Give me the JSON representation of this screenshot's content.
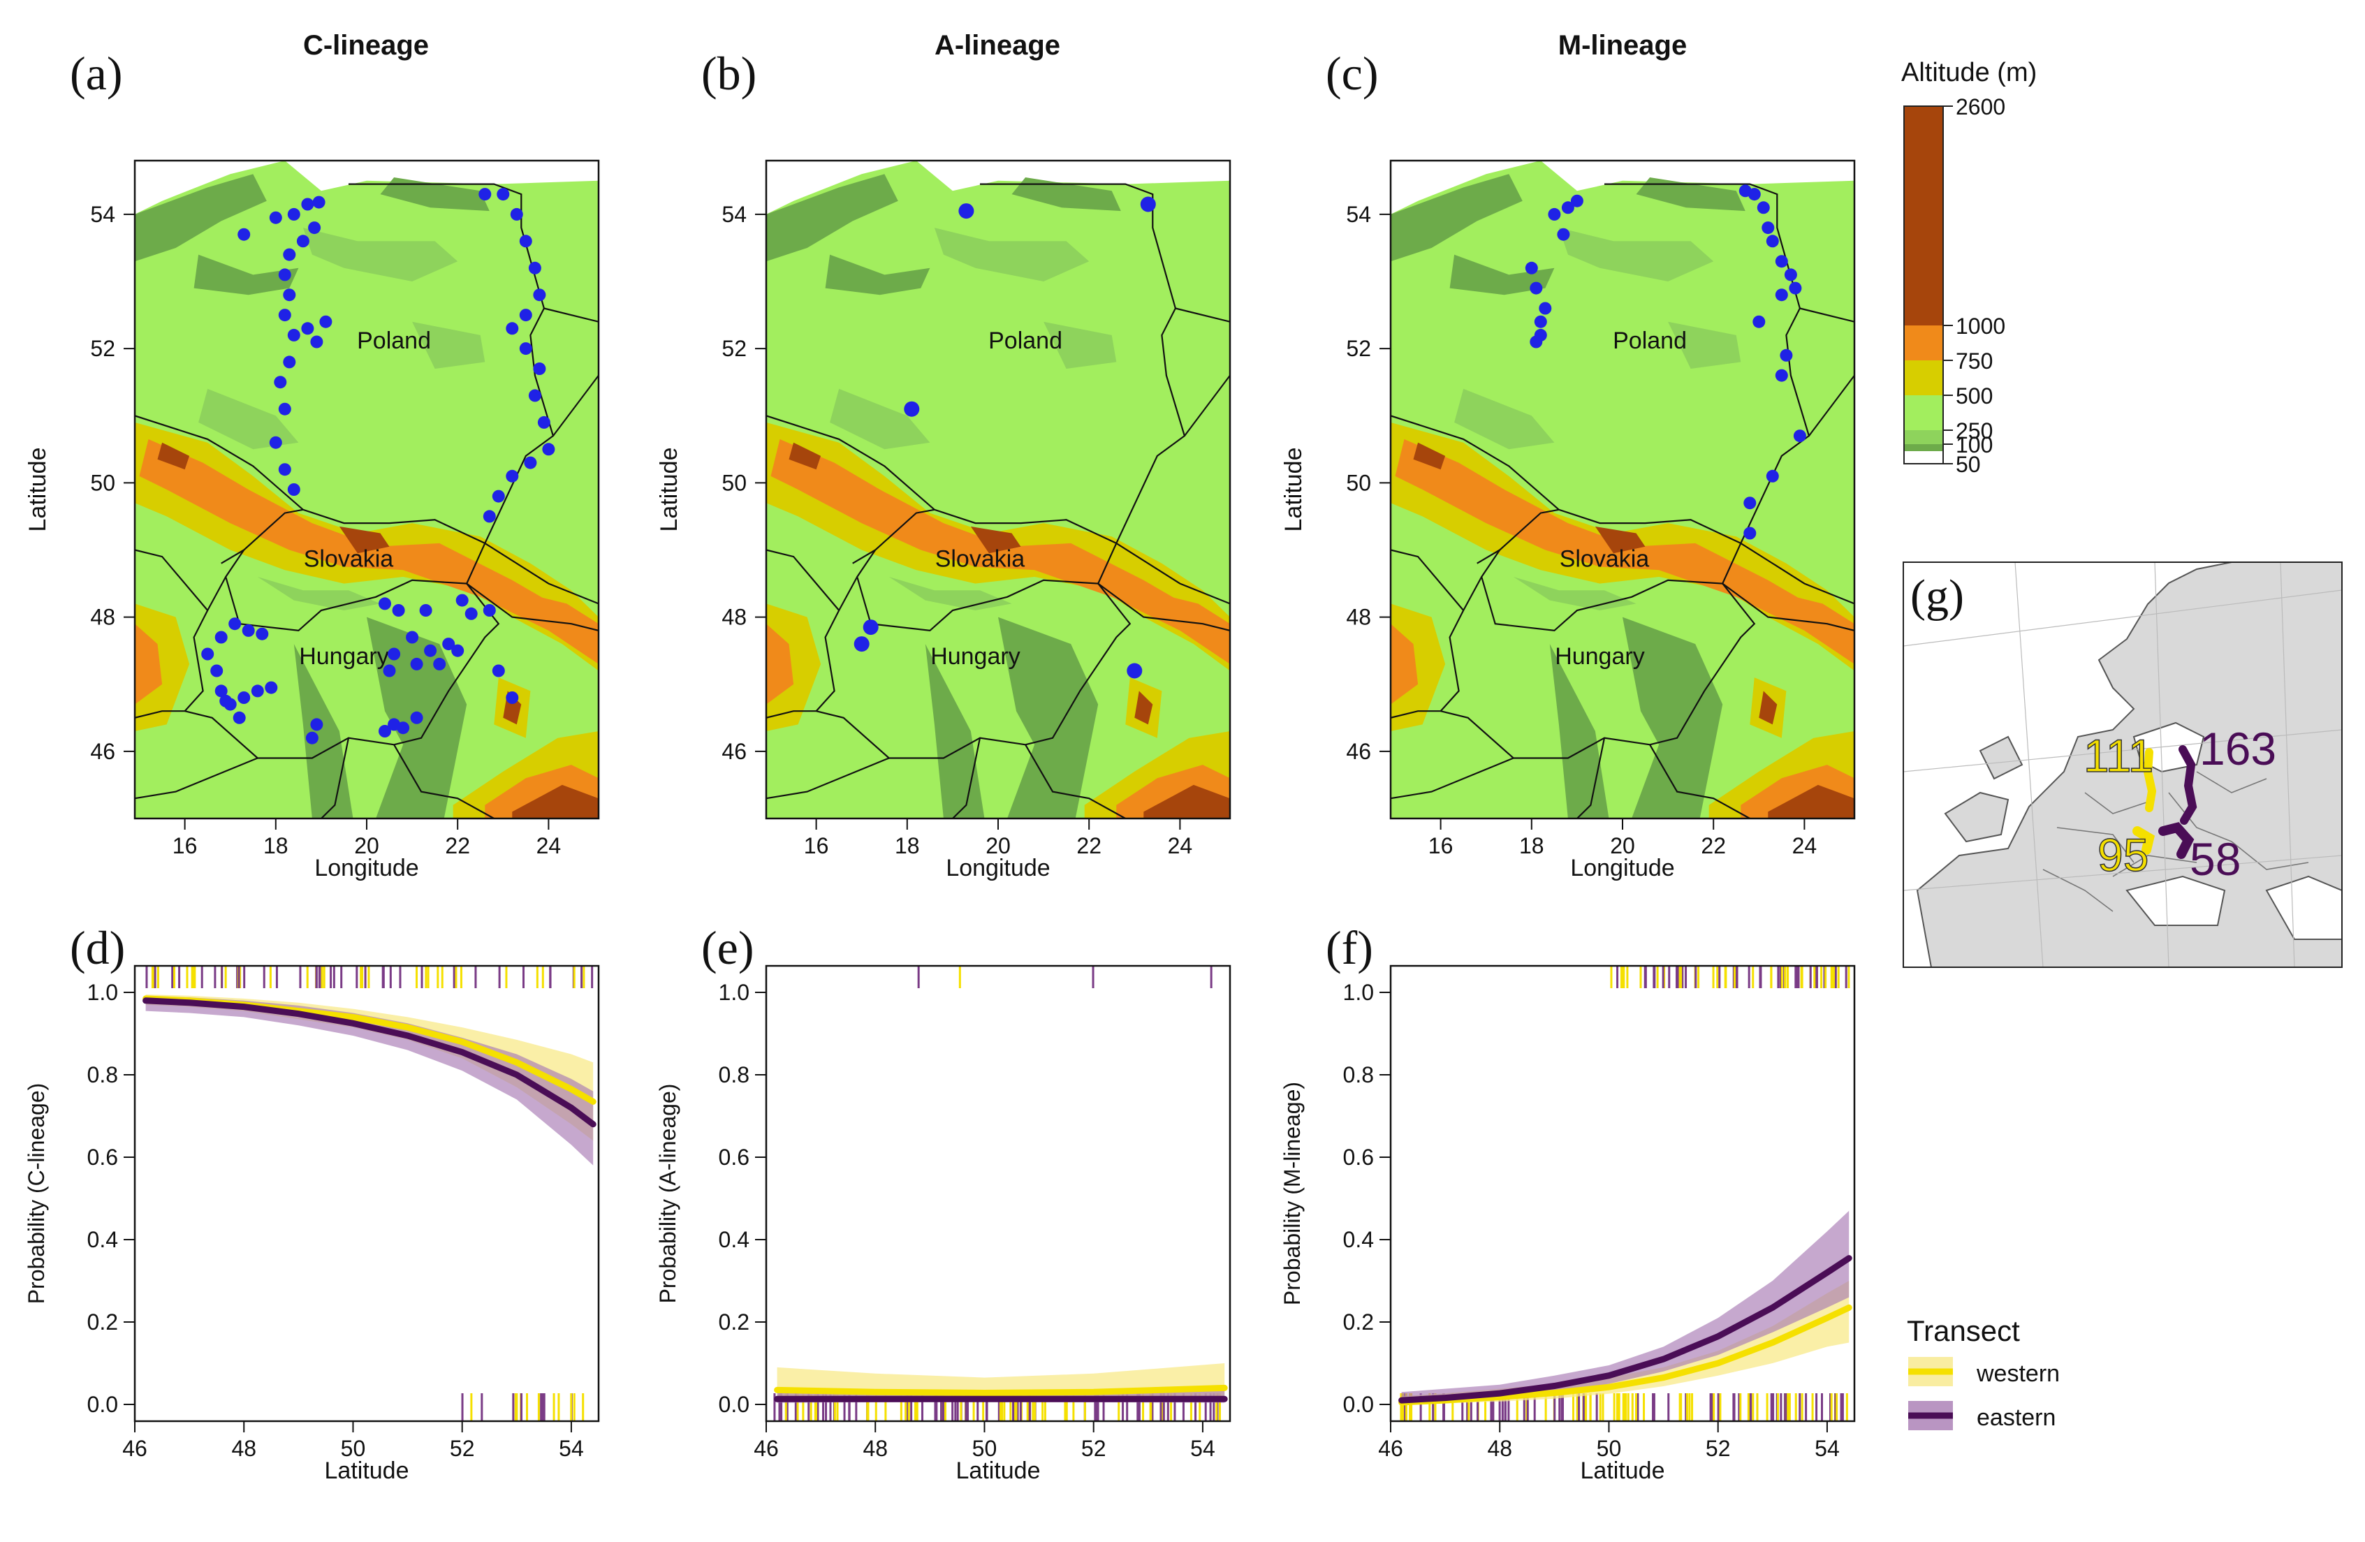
{
  "maps": [
    {
      "id": "a",
      "letter": "(a)",
      "title": "C-lineage",
      "points": [
        [
          17.3,
          53.7
        ],
        [
          18.0,
          53.95
        ],
        [
          18.4,
          54.0
        ],
        [
          18.7,
          54.15
        ],
        [
          18.95,
          54.18
        ],
        [
          18.85,
          53.8
        ],
        [
          18.6,
          53.6
        ],
        [
          18.3,
          53.4
        ],
        [
          18.2,
          53.1
        ],
        [
          18.3,
          52.8
        ],
        [
          18.2,
          52.5
        ],
        [
          18.4,
          52.2
        ],
        [
          18.3,
          51.8
        ],
        [
          18.1,
          51.5
        ],
        [
          18.2,
          51.1
        ],
        [
          18.0,
          50.6
        ],
        [
          18.2,
          50.2
        ],
        [
          18.4,
          49.9
        ],
        [
          18.7,
          52.3
        ],
        [
          19.1,
          52.4
        ],
        [
          18.9,
          52.1
        ],
        [
          22.6,
          54.3
        ],
        [
          23.0,
          54.3
        ],
        [
          23.3,
          54.0
        ],
        [
          23.5,
          53.6
        ],
        [
          23.7,
          53.2
        ],
        [
          23.8,
          52.8
        ],
        [
          23.5,
          52.5
        ],
        [
          23.2,
          52.3
        ],
        [
          23.5,
          52.0
        ],
        [
          23.8,
          51.7
        ],
        [
          23.7,
          51.3
        ],
        [
          23.9,
          50.9
        ],
        [
          24.0,
          50.5
        ],
        [
          23.6,
          50.3
        ],
        [
          23.2,
          50.1
        ],
        [
          22.9,
          49.8
        ],
        [
          22.7,
          49.5
        ],
        [
          20.4,
          48.2
        ],
        [
          20.7,
          48.1
        ],
        [
          21.3,
          48.1
        ],
        [
          22.1,
          48.25
        ],
        [
          22.3,
          48.05
        ],
        [
          22.7,
          48.1
        ],
        [
          21.0,
          47.7
        ],
        [
          21.4,
          47.5
        ],
        [
          21.8,
          47.6
        ],
        [
          20.5,
          47.2
        ],
        [
          20.6,
          47.45
        ],
        [
          21.1,
          47.3
        ],
        [
          21.6,
          47.3
        ],
        [
          22.0,
          47.5
        ],
        [
          20.4,
          46.3
        ],
        [
          20.6,
          46.4
        ],
        [
          21.1,
          46.5
        ],
        [
          20.8,
          46.35
        ],
        [
          18.9,
          46.4
        ],
        [
          18.8,
          46.2
        ],
        [
          22.9,
          47.2
        ],
        [
          23.2,
          46.8
        ],
        [
          17.1,
          47.9
        ],
        [
          17.4,
          47.8
        ],
        [
          16.8,
          47.7
        ],
        [
          17.7,
          47.75
        ],
        [
          16.5,
          47.45
        ],
        [
          16.7,
          47.2
        ],
        [
          16.8,
          46.9
        ],
        [
          17.0,
          46.7
        ],
        [
          17.3,
          46.8
        ],
        [
          17.6,
          46.9
        ],
        [
          17.9,
          46.95
        ],
        [
          17.2,
          46.5
        ],
        [
          16.9,
          46.75
        ]
      ]
    },
    {
      "id": "b",
      "letter": "(b)",
      "title": "A-lineage",
      "points": [
        [
          19.3,
          54.05
        ],
        [
          23.3,
          54.15
        ],
        [
          18.1,
          51.1
        ],
        [
          17.2,
          47.85
        ],
        [
          17.0,
          47.6
        ],
        [
          23.0,
          47.2
        ]
      ]
    },
    {
      "id": "c",
      "letter": "(c)",
      "title": "M-lineage",
      "points": [
        [
          18.8,
          54.1
        ],
        [
          19.0,
          54.2
        ],
        [
          18.5,
          54.0
        ],
        [
          18.7,
          53.7
        ],
        [
          18.0,
          53.2
        ],
        [
          18.1,
          52.9
        ],
        [
          18.3,
          52.6
        ],
        [
          18.2,
          52.4
        ],
        [
          18.2,
          52.2
        ],
        [
          18.1,
          52.1
        ],
        [
          22.7,
          54.35
        ],
        [
          22.9,
          54.3
        ],
        [
          23.1,
          54.1
        ],
        [
          23.2,
          53.8
        ],
        [
          23.3,
          53.6
        ],
        [
          23.5,
          53.3
        ],
        [
          23.7,
          53.1
        ],
        [
          23.8,
          52.9
        ],
        [
          23.5,
          52.8
        ],
        [
          23.0,
          52.4
        ],
        [
          23.6,
          51.9
        ],
        [
          23.5,
          51.6
        ],
        [
          23.9,
          50.7
        ],
        [
          23.3,
          50.1
        ],
        [
          22.8,
          49.7
        ],
        [
          22.8,
          49.25
        ]
      ]
    }
  ],
  "map_labels": {
    "poland": "Poland",
    "slovakia": "Slovakia",
    "hungary": "Hungary",
    "xlabel": "Longitude",
    "ylabel": "Latitude"
  },
  "map_axes": {
    "xticks": [
      16,
      18,
      20,
      22,
      24
    ],
    "yticks": [
      46,
      48,
      50,
      52,
      54
    ],
    "xlim": [
      14.9,
      25.1
    ],
    "ylim": [
      45.0,
      54.8
    ]
  },
  "legend": {
    "title": "Altitude (m)",
    "breaks": [
      2600,
      1000,
      750,
      500,
      250,
      100,
      50
    ],
    "colors": {
      "dark_green": "#6dab4a",
      "mid_green": "#8ed35c",
      "light_green": "#a2ee5e",
      "yellow": "#d7ce00",
      "orange": "#f08a1a",
      "brown": "#a6450c"
    }
  },
  "chart_data": [
    {
      "id": "d",
      "letter": "(d)",
      "type": "line",
      "xlabel": "Latitude",
      "ylabel": "Probability (C-lineage)",
      "xlim": [
        46,
        54.5
      ],
      "ylim": [
        0,
        1
      ],
      "xticks": [
        46,
        48,
        50,
        52,
        54
      ],
      "yticks": [
        0.0,
        0.2,
        0.4,
        0.6,
        0.8,
        1.0
      ],
      "x": [
        46.2,
        47,
        48,
        49,
        50,
        51,
        52,
        53,
        54,
        54.4
      ],
      "series": [
        {
          "name": "western",
          "values": [
            0.985,
            0.98,
            0.97,
            0.955,
            0.94,
            0.915,
            0.88,
            0.83,
            0.765,
            0.735
          ],
          "ci_low": [
            0.97,
            0.965,
            0.955,
            0.935,
            0.915,
            0.885,
            0.84,
            0.77,
            0.68,
            0.64
          ],
          "ci_high": [
            0.995,
            0.992,
            0.985,
            0.975,
            0.96,
            0.94,
            0.915,
            0.885,
            0.85,
            0.83
          ]
        },
        {
          "name": "eastern",
          "values": [
            0.98,
            0.975,
            0.965,
            0.948,
            0.925,
            0.895,
            0.855,
            0.8,
            0.72,
            0.68
          ],
          "ci_low": [
            0.955,
            0.95,
            0.94,
            0.92,
            0.895,
            0.86,
            0.81,
            0.74,
            0.63,
            0.58
          ],
          "ci_high": [
            0.99,
            0.988,
            0.98,
            0.968,
            0.95,
            0.925,
            0.89,
            0.85,
            0.79,
            0.76
          ]
        }
      ]
    },
    {
      "id": "e",
      "letter": "(e)",
      "type": "line",
      "xlabel": "Latitude",
      "ylabel": "Probability (A-lineage)",
      "xlim": [
        46,
        54.5
      ],
      "ylim": [
        0,
        1
      ],
      "xticks": [
        46,
        48,
        50,
        52,
        54
      ],
      "yticks": [
        0.0,
        0.2,
        0.4,
        0.6,
        0.8,
        1.0
      ],
      "x": [
        46.2,
        48,
        50,
        52,
        54.4
      ],
      "series": [
        {
          "name": "western",
          "values": [
            0.035,
            0.03,
            0.028,
            0.03,
            0.04
          ],
          "ci_low": [
            0.01,
            0.01,
            0.012,
            0.01,
            0.01
          ],
          "ci_high": [
            0.09,
            0.075,
            0.065,
            0.075,
            0.1
          ]
        },
        {
          "name": "eastern",
          "values": [
            0.013,
            0.013,
            0.013,
            0.013,
            0.013
          ],
          "ci_low": [
            0.004,
            0.005,
            0.006,
            0.005,
            0.004
          ],
          "ci_high": [
            0.04,
            0.03,
            0.025,
            0.03,
            0.04
          ]
        }
      ]
    },
    {
      "id": "f",
      "letter": "(f)",
      "type": "line",
      "xlabel": "Latitude",
      "ylabel": "Probability (M-lineage)",
      "xlim": [
        46,
        54.5
      ],
      "ylim": [
        0,
        1
      ],
      "xticks": [
        46,
        48,
        50,
        52,
        54
      ],
      "yticks": [
        0.0,
        0.2,
        0.4,
        0.6,
        0.8,
        1.0
      ],
      "x": [
        46.2,
        47,
        48,
        49,
        50,
        51,
        52,
        53,
        54,
        54.4
      ],
      "series": [
        {
          "name": "western",
          "values": [
            0.005,
            0.01,
            0.018,
            0.028,
            0.042,
            0.065,
            0.1,
            0.15,
            0.21,
            0.235
          ],
          "ci_low": [
            0.001,
            0.003,
            0.007,
            0.014,
            0.026,
            0.044,
            0.07,
            0.1,
            0.14,
            0.15
          ],
          "ci_high": [
            0.02,
            0.027,
            0.038,
            0.05,
            0.065,
            0.09,
            0.13,
            0.19,
            0.27,
            0.3
          ]
        },
        {
          "name": "eastern",
          "values": [
            0.01,
            0.016,
            0.027,
            0.045,
            0.07,
            0.11,
            0.165,
            0.235,
            0.32,
            0.355
          ],
          "ci_low": [
            0.003,
            0.006,
            0.014,
            0.027,
            0.05,
            0.08,
            0.12,
            0.175,
            0.235,
            0.26
          ],
          "ci_high": [
            0.03,
            0.038,
            0.048,
            0.07,
            0.095,
            0.14,
            0.21,
            0.3,
            0.42,
            0.47
          ]
        }
      ]
    }
  ],
  "transect_legend": {
    "title": "Transect",
    "items": [
      {
        "label": "western",
        "color": "#f5e000",
        "band": "#f8e98a"
      },
      {
        "label": "eastern",
        "color": "#4a0d56",
        "band": "#a77ab3"
      }
    ]
  },
  "inset": {
    "letter": "(g)",
    "labels": [
      {
        "text": "111",
        "color": "#f5e000"
      },
      {
        "text": "163",
        "color": "#4a0d56"
      },
      {
        "text": "95",
        "color": "#f5e000"
      },
      {
        "text": "58",
        "color": "#4a0d56"
      }
    ]
  }
}
